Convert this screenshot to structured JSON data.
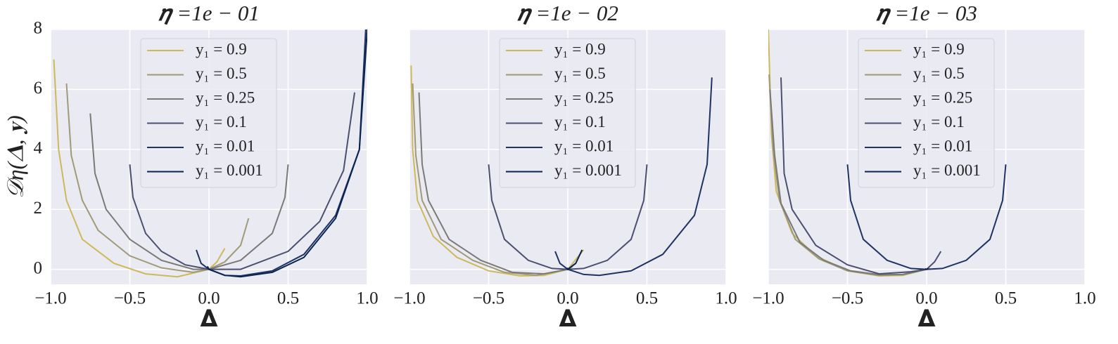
{
  "chart_data": [
    {
      "type": "line",
      "title": "𝜼 =1e − 01",
      "xlabel": "𝚫",
      "ylabel": "𝒟η(𝚫, 𝐲)",
      "xlim": [
        -1,
        1
      ],
      "ylim": [
        -0.5,
        8
      ],
      "xticks": [
        {
          "value": -1,
          "label": "−1.0"
        },
        {
          "value": -0.5,
          "label": "−0.5"
        },
        {
          "value": 0,
          "label": "0.0"
        },
        {
          "value": 0.5,
          "label": "0.5"
        },
        {
          "value": 1,
          "label": "1.0"
        }
      ],
      "yticks": [
        0,
        2,
        4,
        6,
        8
      ],
      "grid": true,
      "legend": "upper center",
      "series": [
        {
          "name": "y₁ = 0.9",
          "color": "#cdb95c",
          "x": [
            -0.98,
            -0.95,
            -0.9,
            -0.8,
            -0.6,
            -0.4,
            -0.2,
            0,
            0.05,
            0.1
          ],
          "values": [
            7.0,
            4.0,
            2.3,
            1.0,
            0.2,
            -0.15,
            -0.25,
            0,
            0.25,
            0.7
          ]
        },
        {
          "name": "y₁ = 0.5",
          "color": "#a09a78",
          "x": [
            -0.9,
            -0.87,
            -0.8,
            -0.7,
            -0.5,
            -0.3,
            -0.1,
            0,
            0.1,
            0.2,
            0.25
          ],
          "values": [
            6.2,
            3.8,
            2.3,
            1.3,
            0.45,
            0.05,
            -0.1,
            0,
            0.25,
            0.8,
            1.7
          ]
        },
        {
          "name": "y₁ = 0.25",
          "color": "#7b7a77",
          "x": [
            -0.75,
            -0.72,
            -0.65,
            -0.5,
            -0.3,
            -0.1,
            0,
            0.2,
            0.4,
            0.48,
            0.5
          ],
          "values": [
            5.2,
            3.2,
            2.0,
            1.0,
            0.3,
            0.0,
            0,
            0.3,
            1.2,
            2.4,
            3.5
          ]
        },
        {
          "name": "y₁ = 0.1",
          "color": "#4b5070",
          "x": [
            -0.5,
            -0.48,
            -0.4,
            -0.3,
            -0.15,
            0,
            0.2,
            0.5,
            0.7,
            0.85,
            0.92
          ],
          "values": [
            3.5,
            2.4,
            1.2,
            0.6,
            0.15,
            0,
            0.0,
            0.6,
            1.6,
            3.3,
            5.9
          ]
        },
        {
          "name": "y₁ = 0.01",
          "color": "#1f3363",
          "x": [
            -0.08,
            -0.05,
            0,
            0.1,
            0.2,
            0.4,
            0.6,
            0.8,
            0.95,
            0.99
          ],
          "values": [
            0.65,
            0.2,
            0,
            -0.2,
            -0.22,
            -0.05,
            0.5,
            1.8,
            4.0,
            8.0
          ]
        },
        {
          "name": "y₁ = 0.001",
          "color": "#0a2350",
          "x": [
            -0.01,
            0,
            0.1,
            0.2,
            0.4,
            0.6,
            0.8,
            0.95,
            1.0
          ],
          "values": [
            0.1,
            0,
            -0.2,
            -0.25,
            -0.1,
            0.4,
            1.7,
            4,
            8
          ]
        }
      ]
    },
    {
      "type": "line",
      "title": "𝜼 =1e − 02",
      "xlabel": "𝚫",
      "sharey": true,
      "xlim": [
        -1,
        1
      ],
      "ylim": [
        -0.5,
        8
      ],
      "xticks": [
        {
          "value": -1,
          "label": "−1.0"
        },
        {
          "value": -0.5,
          "label": "−0.5"
        },
        {
          "value": 0,
          "label": "0.0"
        },
        {
          "value": 0.5,
          "label": "0.5"
        },
        {
          "value": 1,
          "label": "1.0"
        }
      ],
      "yticks": [
        0,
        2,
        4,
        6,
        8
      ],
      "grid": true,
      "legend": "upper center",
      "series": [
        {
          "name": "y₁ = 0.9",
          "color": "#cdb95c",
          "x": [
            -0.99,
            -0.98,
            -0.95,
            -0.85,
            -0.7,
            -0.5,
            -0.3,
            -0.15,
            0,
            0.1
          ],
          "values": [
            6.8,
            4,
            2.3,
            1.1,
            0.4,
            -0.05,
            -0.22,
            -0.2,
            0,
            0.65
          ]
        },
        {
          "name": "y₁ = 0.5",
          "color": "#a09a78",
          "x": [
            -0.98,
            -0.96,
            -0.92,
            -0.8,
            -0.6,
            -0.4,
            -0.2,
            0,
            0.05
          ],
          "values": [
            6.2,
            3.8,
            2.3,
            1.0,
            0.3,
            -0.1,
            -0.2,
            0,
            0.2
          ]
        },
        {
          "name": "y₁ = 0.25",
          "color": "#7b7a77",
          "x": [
            -0.94,
            -0.92,
            -0.88,
            -0.75,
            -0.55,
            -0.35,
            -0.15,
            0,
            0.03
          ],
          "values": [
            5.9,
            3.5,
            2.3,
            1.0,
            0.3,
            -0.1,
            -0.15,
            0,
            0.1
          ]
        },
        {
          "name": "y₁ = 0.1",
          "color": "#4b5070",
          "x": [
            -0.5,
            -0.48,
            -0.4,
            -0.25,
            -0.1,
            0,
            0.1,
            0.25,
            0.4,
            0.48,
            0.5
          ],
          "values": [
            3.5,
            2.3,
            1.0,
            0.3,
            0.03,
            0,
            0.03,
            0.3,
            1.0,
            2.3,
            3.5
          ]
        },
        {
          "name": "y₁ = 0.01",
          "color": "#1f3363",
          "x": [
            -0.08,
            -0.05,
            0,
            0.1,
            0.2,
            0.4,
            0.6,
            0.8,
            0.88,
            0.91
          ],
          "values": [
            0.6,
            0.2,
            0,
            -0.17,
            -0.2,
            -0.05,
            0.5,
            1.8,
            3.5,
            6.4
          ]
        },
        {
          "name": "y₁ = 0.001",
          "color": "#0a2350",
          "x": [
            -0.005,
            0,
            0.05,
            0.09
          ],
          "values": [
            0.05,
            0,
            0.2,
            0.65
          ]
        }
      ]
    },
    {
      "type": "line",
      "title": "𝜼 =1e − 03",
      "xlabel": "𝚫",
      "sharey": true,
      "xlim": [
        -1,
        1
      ],
      "ylim": [
        -0.5,
        8
      ],
      "xticks": [
        {
          "value": -1,
          "label": "−1.0"
        },
        {
          "value": -0.5,
          "label": "−0.5"
        },
        {
          "value": 0,
          "label": "0.0"
        },
        {
          "value": 0.5,
          "label": "0.5"
        },
        {
          "value": 1,
          "label": "1.0"
        }
      ],
      "yticks": [
        0,
        2,
        4,
        6,
        8
      ],
      "grid": true,
      "legend": "upper center",
      "series": [
        {
          "name": "y₁ = 0.9",
          "color": "#cdb95c",
          "x": [
            -1.0,
            -0.98,
            -0.95,
            -0.85,
            -0.7,
            -0.5,
            -0.3,
            -0.15,
            0,
            0.02
          ],
          "values": [
            8,
            4.5,
            2.6,
            1.2,
            0.45,
            -0.05,
            -0.22,
            -0.2,
            0,
            0.05
          ]
        },
        {
          "name": "y₁ = 0.5",
          "color": "#a09a78",
          "x": [
            -0.995,
            -0.97,
            -0.93,
            -0.83,
            -0.68,
            -0.5,
            -0.3,
            -0.15,
            0
          ],
          "values": [
            6.5,
            4,
            2.3,
            1.0,
            0.35,
            -0.05,
            -0.2,
            -0.18,
            0
          ]
        },
        {
          "name": "y₁ = 0.25",
          "color": "#7b7a77",
          "x": [
            -0.99,
            -0.96,
            -0.92,
            -0.8,
            -0.65,
            -0.48,
            -0.3,
            -0.15,
            0
          ],
          "values": [
            6.0,
            3.8,
            2.2,
            0.9,
            0.3,
            -0.05,
            -0.18,
            -0.17,
            0
          ]
        },
        {
          "name": "y₁ = 0.1",
          "color": "#4b5070",
          "x": [
            -0.92,
            -0.9,
            -0.85,
            -0.7,
            -0.5,
            -0.3,
            -0.1,
            0,
            0.05,
            0.09
          ],
          "values": [
            6.4,
            3.2,
            2.0,
            0.8,
            0.15,
            -0.15,
            -0.08,
            0,
            0.25,
            0.6
          ]
        },
        {
          "name": "y₁ = 0.01",
          "color": "#1f3363",
          "x": [
            -0.5,
            -0.48,
            -0.4,
            -0.25,
            -0.1,
            0,
            0.1,
            0.25,
            0.4,
            0.48,
            0.5
          ],
          "values": [
            3.5,
            2.3,
            1.0,
            0.3,
            0.03,
            0,
            0.03,
            0.3,
            1.0,
            2.3,
            3.5
          ]
        },
        {
          "name": "y₁ = 0.001",
          "color": "#0a2350",
          "x": [
            -0.01,
            0,
            0.01
          ],
          "values": [
            0.02,
            0,
            0.02
          ]
        }
      ]
    }
  ]
}
